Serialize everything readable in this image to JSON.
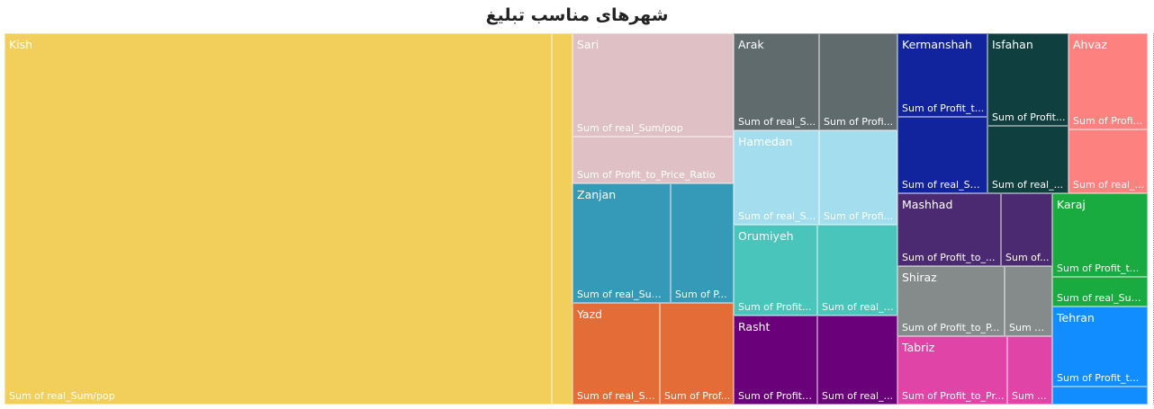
{
  "title": "شهرهای مناسب تبلیغ",
  "chart_data": {
    "type": "treemap",
    "title": "شهرهای مناسب تبلیغ",
    "measures": [
      "Sum of real_Sum/pop",
      "Sum of Profit_to_Price_Ratio"
    ],
    "cities": [
      {
        "name": "Kish",
        "color": "#F1CF5A",
        "measure_labels": [
          "Sum of real_Sum/pop",
          ""
        ]
      },
      {
        "name": "Sari",
        "color": "#DFC0C4",
        "measure_labels": [
          "Sum of real_Sum/pop",
          "Sum of Profit_to_Price_Ratio"
        ]
      },
      {
        "name": "Zanjan",
        "color": "#3599B8",
        "measure_labels": [
          "Sum of real_Sum...",
          "Sum of P..."
        ]
      },
      {
        "name": "Yazd",
        "color": "#E46C37",
        "measure_labels": [
          "Sum of real_Su...",
          "Sum of Prof..."
        ]
      },
      {
        "name": "Arak",
        "color": "#5F6B6D",
        "measure_labels": [
          "Sum of real_S...",
          "Sum of Profi..."
        ]
      },
      {
        "name": "Hamedan",
        "color": "#A4DDEE",
        "measure_labels": [
          "Sum of real_S...",
          "Sum of Profi..."
        ]
      },
      {
        "name": "Orumiyeh",
        "color": "#4AC5BB",
        "measure_labels": [
          "Sum of Profit...",
          "Sum of real_S..."
        ]
      },
      {
        "name": "Rasht",
        "color": "#6B007B",
        "measure_labels": [
          "Sum of Profit_...",
          "Sum of real_..."
        ]
      },
      {
        "name": "Kermanshah",
        "color": "#12239E",
        "measure_labels": [
          "Sum of Profit_t...",
          "Sum of real_Su..."
        ]
      },
      {
        "name": "Isfahan",
        "color": "#0F3F3F",
        "measure_labels": [
          "Sum of Profit...",
          "Sum of real_..."
        ]
      },
      {
        "name": "Ahvaz",
        "color": "#FD817E",
        "measure_labels": [
          "Sum of Profi...",
          "Sum of real_..."
        ]
      },
      {
        "name": "Mashhad",
        "color": "#4B2A72",
        "measure_labels": [
          "Sum of Profit_to_...",
          "Sum of..."
        ]
      },
      {
        "name": "Shiraz",
        "color": "#858A8A",
        "measure_labels": [
          "Sum of Profit_to_P...",
          "Sum o..."
        ]
      },
      {
        "name": "Tabriz",
        "color": "#E044A7",
        "measure_labels": [
          "Sum of Profit_to_Pr...",
          "Sum ..."
        ]
      },
      {
        "name": "Karaj",
        "color": "#1AAB40",
        "measure_labels": [
          "Sum of Profit_t...",
          "Sum of real_Sum..."
        ]
      },
      {
        "name": "Tehran",
        "color": "#118DFF",
        "measure_labels": [
          "Sum of Profit_t...",
          ""
        ]
      }
    ]
  }
}
